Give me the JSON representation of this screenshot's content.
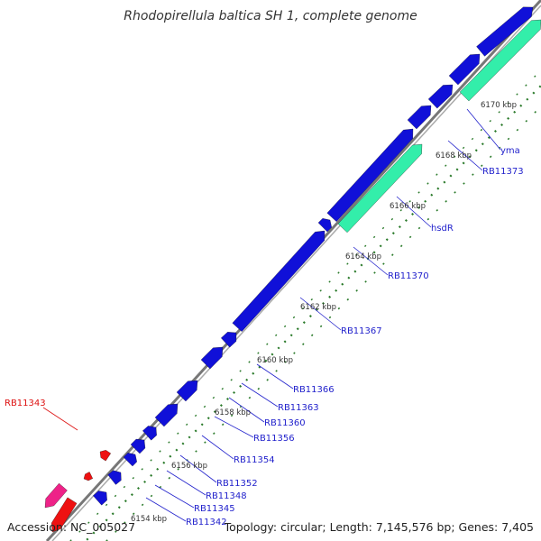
{
  "title": "Rhodopirellula baltica SH 1, complete genome",
  "footer": {
    "accession": "Accession: NC_005027",
    "summary": "Topology: circular; Length: 7,145,576 bp; Genes: 7,405"
  },
  "colors": {
    "forward_gene": "#1010d8",
    "rna_gene": "#33eeaa",
    "reverse_gene": "#ee1111",
    "backbone": "#888888",
    "tick": "#2a7a2a",
    "label_forward": "#2222cc",
    "label_reverse": "#dd1111"
  },
  "scale_labels": [
    "6154 kbp",
    "6156 kbp",
    "6158 kbp",
    "6160 kbp",
    "6162 kbp",
    "6164 kbp",
    "6166 kbp",
    "6168 kbp",
    "6170 kbp"
  ],
  "gene_labels": [
    {
      "text": "RB11342",
      "color": "forward"
    },
    {
      "text": "RB11345",
      "color": "forward"
    },
    {
      "text": "RB11348",
      "color": "forward"
    },
    {
      "text": "RB11352",
      "color": "forward"
    },
    {
      "text": "RB11354",
      "color": "forward"
    },
    {
      "text": "RB11356",
      "color": "forward"
    },
    {
      "text": "RB11360",
      "color": "forward"
    },
    {
      "text": "RB11363",
      "color": "forward"
    },
    {
      "text": "RB11366",
      "color": "forward"
    },
    {
      "text": "RB11367",
      "color": "forward"
    },
    {
      "text": "RB11370",
      "color": "forward"
    },
    {
      "text": "hsdR",
      "color": "forward"
    },
    {
      "text": "RB11373",
      "color": "forward"
    },
    {
      "text": "yma",
      "color": "forward"
    },
    {
      "text": "RB11343",
      "color": "reverse"
    }
  ]
}
